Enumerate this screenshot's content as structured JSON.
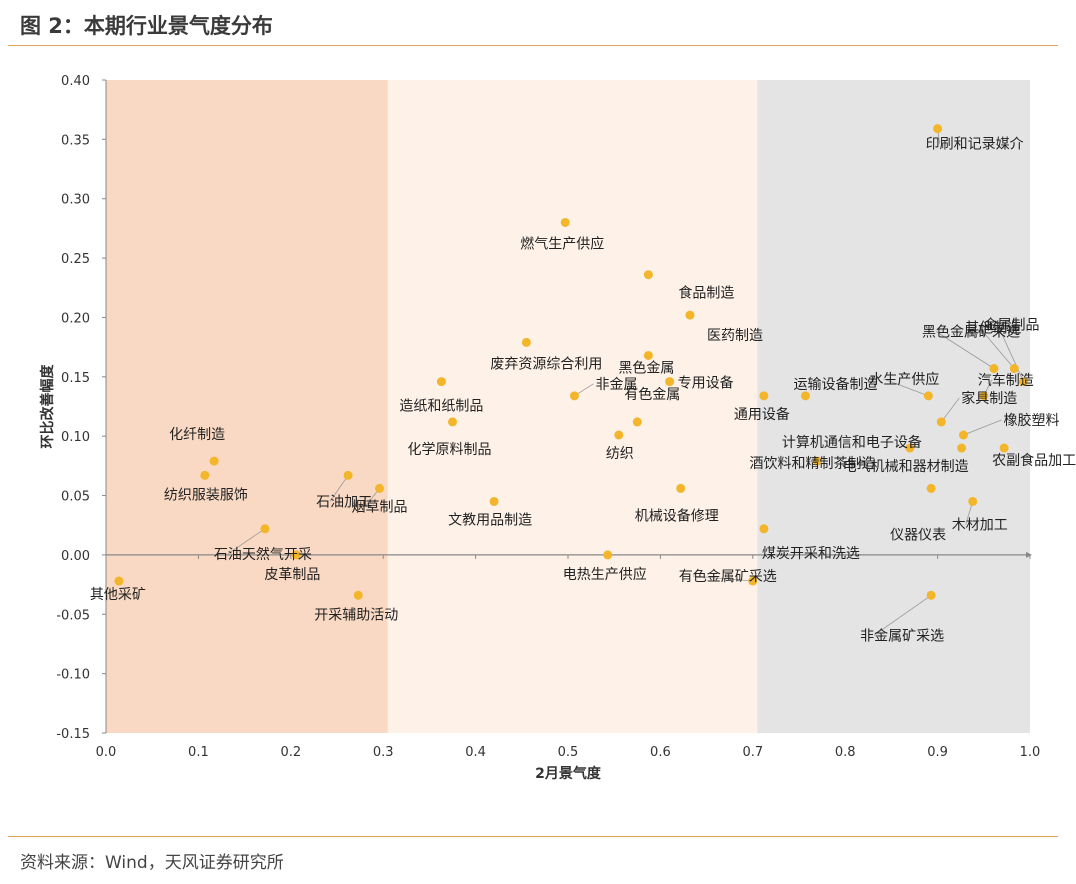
{
  "figure_title": "图 2：本期行业景气度分布",
  "source_note": "资料来源：Wind，天风证券研究所",
  "colors": {
    "zone_low": "#f9d9c3",
    "zone_mid": "#fef1e8",
    "zone_high": "#e4e4e4",
    "point": "#f3b52a",
    "rule": "#e0a15a",
    "axis": "#888888"
  },
  "chart_data": {
    "type": "scatter",
    "xlabel": "2月景气度",
    "ylabel": "环比改善幅度",
    "xlim": [
      0.0,
      1.0
    ],
    "ylim": [
      -0.15,
      0.4
    ],
    "x_ticks": [
      "0.0",
      "0.1",
      "0.2",
      "0.3",
      "0.4",
      "0.5",
      "0.6",
      "0.7",
      "0.8",
      "0.9",
      "1.0"
    ],
    "y_ticks": [
      "0.40",
      "0.35",
      "0.30",
      "0.25",
      "0.20",
      "0.15",
      "0.10",
      "0.05",
      "0.00",
      "-0.05",
      "-0.10",
      "-0.15"
    ],
    "zones": [
      {
        "x_from": 0.0,
        "x_to": 0.305,
        "color": "zone_low"
      },
      {
        "x_from": 0.305,
        "x_to": 0.705,
        "color": "zone_mid"
      },
      {
        "x_from": 0.705,
        "x_to": 1.0,
        "color": "zone_high"
      }
    ],
    "points": [
      {
        "label": "印刷和记录媒介",
        "x": 0.9,
        "y": 0.359
      },
      {
        "label": "燃气生产供应",
        "x": 0.497,
        "y": 0.28
      },
      {
        "label": "食品制造",
        "x": 0.587,
        "y": 0.236
      },
      {
        "label": "医药制造",
        "x": 0.632,
        "y": 0.202
      },
      {
        "label": "废弃资源综合利用",
        "x": 0.455,
        "y": 0.179
      },
      {
        "label": "黑色金属",
        "x": 0.587,
        "y": 0.168
      },
      {
        "label": "非金属",
        "x": 0.507,
        "y": 0.134
      },
      {
        "label": "专用设备",
        "x": 0.61,
        "y": 0.146
      },
      {
        "label": "造纸和纸制品",
        "x": 0.363,
        "y": 0.146
      },
      {
        "label": "化学原料制品",
        "x": 0.375,
        "y": 0.112
      },
      {
        "label": "有色金属",
        "x": 0.575,
        "y": 0.112
      },
      {
        "label": "纺织",
        "x": 0.555,
        "y": 0.101
      },
      {
        "label": "通用设备",
        "x": 0.712,
        "y": 0.134
      },
      {
        "label": "运输设备制造",
        "x": 0.757,
        "y": 0.134
      },
      {
        "label": "金属制品",
        "x": 0.993,
        "y": 0.146
      },
      {
        "label": "其他制造",
        "x": 0.983,
        "y": 0.157
      },
      {
        "label": "黑色金属矿采选",
        "x": 0.961,
        "y": 0.157
      },
      {
        "label": "水生产供应",
        "x": 0.89,
        "y": 0.134
      },
      {
        "label": "汽车制造",
        "x": 0.95,
        "y": 0.134
      },
      {
        "label": "家具制造",
        "x": 0.904,
        "y": 0.112
      },
      {
        "label": "橡胶塑料",
        "x": 0.928,
        "y": 0.101
      },
      {
        "label": "计算机通信和电子设备",
        "x": 0.87,
        "y": 0.09
      },
      {
        "label": "农副食品加工",
        "x": 0.972,
        "y": 0.09
      },
      {
        "label": "电气机械和器材制造",
        "x": 0.926,
        "y": 0.09
      },
      {
        "label": "酒饮料和精制茶制造",
        "x": 0.77,
        "y": 0.079
      },
      {
        "label": "仪器仪表",
        "x": 0.893,
        "y": 0.056
      },
      {
        "label": "木材加工",
        "x": 0.938,
        "y": 0.045
      },
      {
        "label": "化纤制造",
        "x": 0.117,
        "y": 0.079
      },
      {
        "label": "纺织服装服饰",
        "x": 0.107,
        "y": 0.067
      },
      {
        "label": "石油加工",
        "x": 0.262,
        "y": 0.067
      },
      {
        "label": "烟草制品",
        "x": 0.296,
        "y": 0.056
      },
      {
        "label": "文教用品制造",
        "x": 0.42,
        "y": 0.045
      },
      {
        "label": "机械设备修理",
        "x": 0.622,
        "y": 0.056
      },
      {
        "label": "煤炭开采和洗选",
        "x": 0.712,
        "y": 0.022
      },
      {
        "label": "石油天然气开采",
        "x": 0.172,
        "y": 0.022
      },
      {
        "label": "皮革制品",
        "x": 0.206,
        "y": 0.0
      },
      {
        "label": "电热生产供应",
        "x": 0.543,
        "y": 0.0
      },
      {
        "label": "有色金属矿采选",
        "x": 0.7,
        "y": -0.022
      },
      {
        "label": "其他采矿",
        "x": 0.014,
        "y": -0.022
      },
      {
        "label": "开采辅助活动",
        "x": 0.273,
        "y": -0.034
      },
      {
        "label": "非金属矿采选",
        "x": 0.893,
        "y": -0.034
      }
    ]
  }
}
